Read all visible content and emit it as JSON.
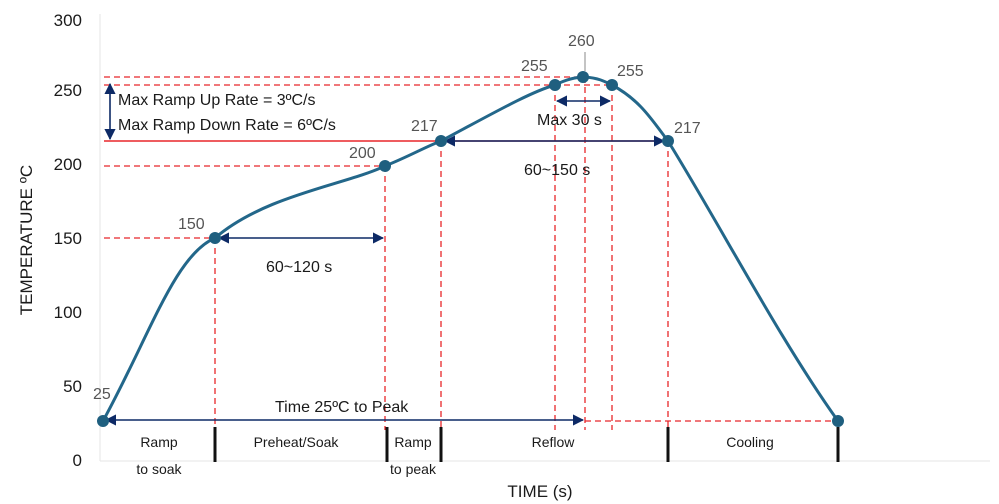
{
  "chart_data": {
    "type": "line",
    "title": "",
    "xlabel": "TIME (s)",
    "ylabel": "TEMPERATURE ºC",
    "ylim": [
      0,
      300
    ],
    "y_ticks": [
      "0",
      "50",
      "100",
      "150",
      "200",
      "250",
      "300"
    ],
    "x_ticks": [],
    "grid": false,
    "colors": {
      "curve": "#23678a",
      "point": "#1f5f7f",
      "guide": "#e8262a",
      "arrow": "#0d2a66",
      "phase_divider": "#111111"
    },
    "series": [
      {
        "points": [
          {
            "label": "25",
            "y": 25
          },
          {
            "label": "150",
            "y": 150
          },
          {
            "label": "200",
            "y": 200
          },
          {
            "label": "217",
            "y": 217
          },
          {
            "label": "255",
            "y": 255
          },
          {
            "label": "260",
            "y": 260
          },
          {
            "label": "255",
            "y": 255
          },
          {
            "label": "217",
            "y": 217
          },
          {
            "label": "",
            "y": 25
          }
        ]
      }
    ],
    "annotations": {
      "ramp_up": "Max Ramp Up Rate = 3ºC/s",
      "ramp_down": "Max Ramp Down Rate = 6ºC/s",
      "soak_time": "60~120 s",
      "reflow_time": "60~150 s",
      "peak_time": "Max 30 s",
      "total_time": "Time 25ºC to Peak"
    },
    "phases": [
      {
        "line1": "Ramp",
        "line2": "to soak"
      },
      {
        "line1": "Preheat/Soak",
        "line2": ""
      },
      {
        "line1": "Ramp",
        "line2": "to peak"
      },
      {
        "line1": "Reflow",
        "line2": ""
      },
      {
        "line1": "Cooling",
        "line2": ""
      }
    ]
  }
}
